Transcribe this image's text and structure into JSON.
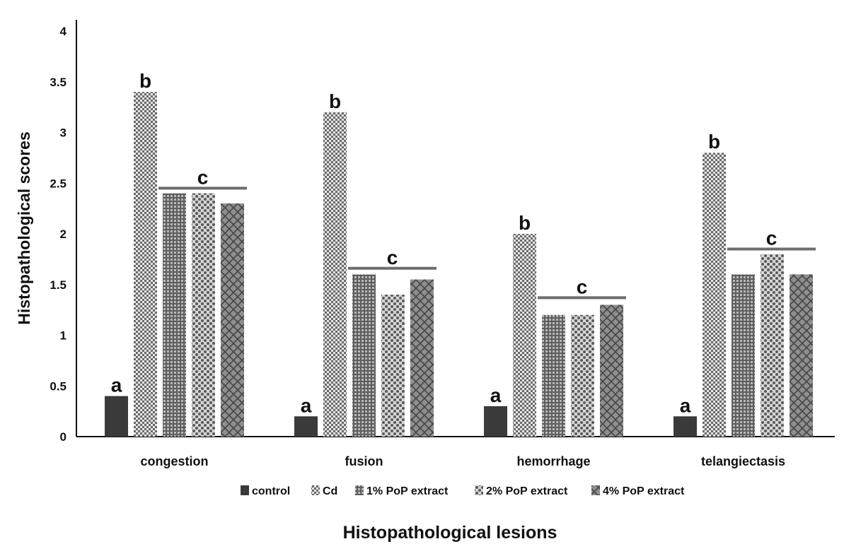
{
  "chart_data": {
    "type": "bar",
    "title": "",
    "xlabel": "Histopathological lesions",
    "ylabel": "Histopathological scores",
    "ylim": [
      0,
      4
    ],
    "yticks": [
      "0",
      "0.5",
      "1",
      "1.5",
      "2",
      "2.5",
      "3",
      "3.5",
      "4"
    ],
    "grid": false,
    "legend_position": "bottom",
    "categories": [
      "congestion",
      "fusion",
      "hemorrhage",
      "telangiectasis"
    ],
    "series": [
      {
        "name": "control",
        "values": [
          0.4,
          0.2,
          0.3,
          0.2
        ],
        "color": "#3a3a3a",
        "pattern": "solid"
      },
      {
        "name": "Cd",
        "values": [
          3.4,
          3.2,
          2.0,
          2.8
        ],
        "color": "#8a8a8a",
        "pattern": "checker"
      },
      {
        "name": "1% PoP extract",
        "values": [
          2.4,
          1.6,
          1.2,
          1.6
        ],
        "color": "#777777",
        "pattern": "grid"
      },
      {
        "name": "2% PoP extract",
        "values": [
          2.4,
          1.4,
          1.2,
          1.8
        ],
        "color": "#8c8c8c",
        "pattern": "dots"
      },
      {
        "name": "4% PoP extract",
        "values": [
          2.3,
          1.55,
          1.3,
          1.6
        ],
        "color": "#808080",
        "pattern": "crosshatch"
      }
    ],
    "annotations": {
      "a": "a",
      "b": "b",
      "c": "c",
      "bracket_values": [
        2.45,
        1.66,
        1.37,
        1.85
      ]
    }
  }
}
